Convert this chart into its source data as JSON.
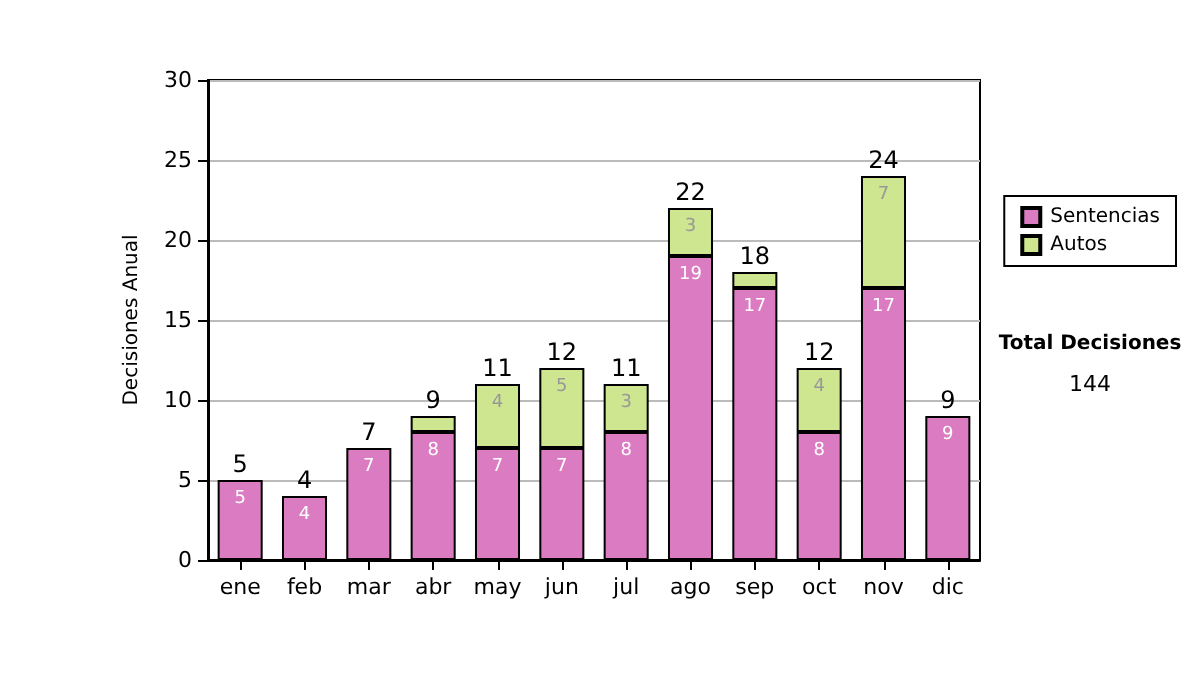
{
  "chart_data": {
    "type": "bar",
    "stacked": true,
    "ylabel": "Decisiones Anual",
    "categories": [
      "ene",
      "feb",
      "mar",
      "abr",
      "may",
      "jun",
      "jul",
      "ago",
      "sep",
      "oct",
      "nov",
      "dic"
    ],
    "series": [
      {
        "name": "Sentencias",
        "color": "#db7cc2",
        "values": [
          5,
          4,
          7,
          8,
          7,
          7,
          8,
          19,
          17,
          8,
          17,
          9
        ],
        "value_labels": [
          "5",
          "4",
          "7",
          "8",
          "7",
          "7",
          "8",
          "19",
          "17",
          "8",
          "17",
          "9"
        ]
      },
      {
        "name": "Autos",
        "color": "#cde68f",
        "values": [
          null,
          null,
          null,
          1,
          4,
          5,
          3,
          3,
          1,
          4,
          7,
          null
        ],
        "value_labels": [
          null,
          null,
          null,
          null,
          "4",
          "5",
          "3",
          "3",
          null,
          "4",
          "7",
          null
        ]
      }
    ],
    "totals": [
      "5",
      "4",
      "7",
      "9",
      "11",
      "12",
      "11",
      "22",
      "18",
      "12",
      "24",
      "9"
    ],
    "ylim": [
      0,
      30
    ],
    "yticks": [
      0,
      5,
      10,
      15,
      20,
      25,
      30
    ],
    "grid": "y",
    "legend": "right",
    "annotations": [
      "Total Decisiones",
      "144"
    ]
  }
}
